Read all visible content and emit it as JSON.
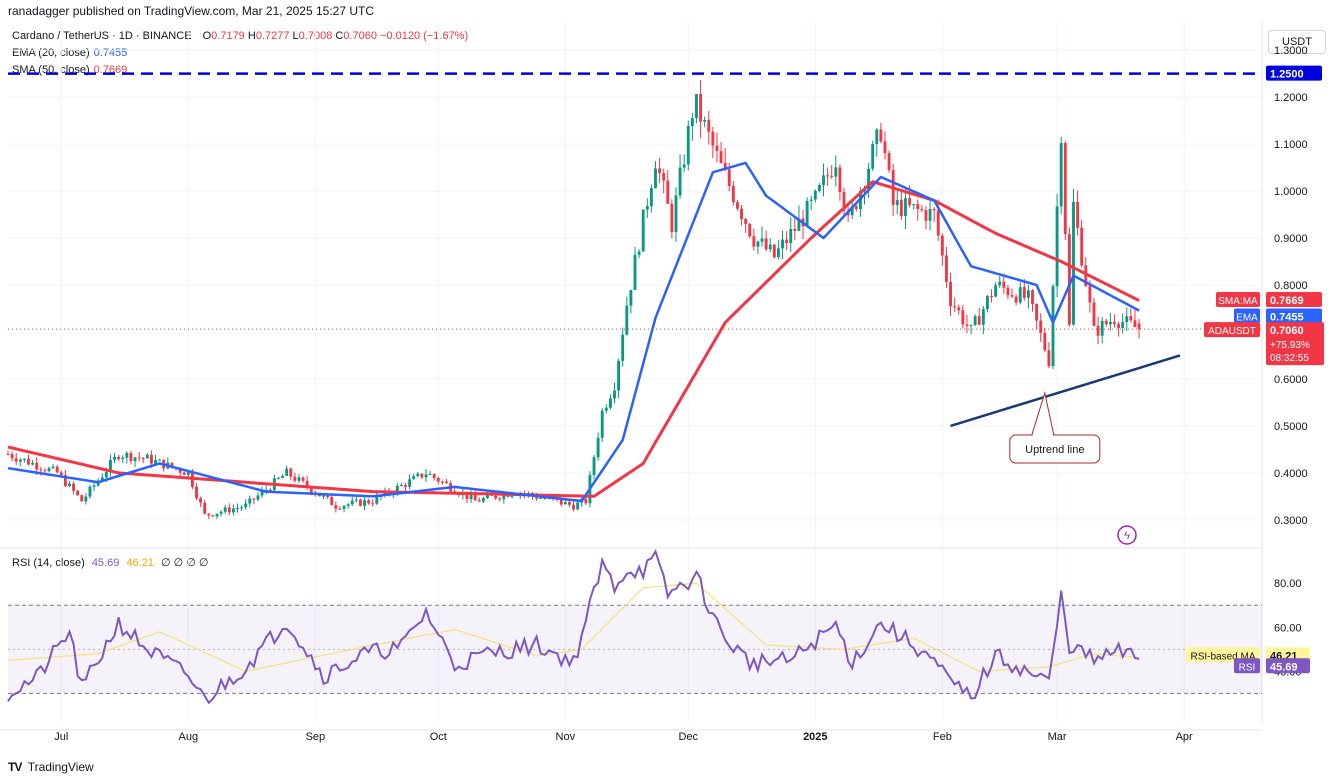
{
  "header": {
    "publisher": "ranadagger published on TradingView.com, Mar 21, 2025 15:27 UTC",
    "symbol": "Cardano / TetherUS · 1D · BINANCE",
    "ohlc": {
      "o_label": "O",
      "o": "0.7179",
      "h_label": "H",
      "h": "0.7277",
      "l_label": "L",
      "l": "0.7008",
      "c_label": "C",
      "c": "0.7060",
      "change": "−0.0120 (−1.67%)"
    },
    "ema_label": "EMA (20, close)",
    "ema_value": "0.7455",
    "sma_label": "SMA (50, close)",
    "sma_value": "0.7669",
    "rsi_label": "RSI (14, close)",
    "rsi_value": "45.69",
    "rsi_ma_value": "46.21",
    "rsi_extra": "∅ ∅ ∅ ∅"
  },
  "currency_button": "USDT",
  "footer": {
    "brand": "TradingView"
  },
  "colors": {
    "up": "#089981",
    "down": "#f23645",
    "ema": "#2962ff",
    "sma": "#f23645",
    "rsi": "#7e57c2",
    "rsi_ma": "#f7e07a",
    "level": "#0000dd",
    "trend": "#1a3a75"
  },
  "chart_data": [
    {
      "type": "candlestick",
      "title": "Cardano / TetherUS · 1D · BINANCE",
      "x_tick_labels": [
        "Jul",
        "Aug",
        "Sep",
        "Oct",
        "Nov",
        "Dec",
        "2025",
        "Feb",
        "Mar",
        "Apr"
      ],
      "y_tick_labels": [
        "1.3000",
        "1.2000",
        "1.1000",
        "1.0000",
        "0.9000",
        "0.8000",
        "0.6000",
        "0.5000",
        "0.4000",
        "0.3000"
      ],
      "ylim": [
        0.24,
        1.36
      ],
      "price_anchors": [
        [
          "Jun 18",
          0.44
        ],
        [
          "Jun 30",
          0.4
        ],
        [
          "Jul 6",
          0.34
        ],
        [
          "Jul 15",
          0.44
        ],
        [
          "Jul 22",
          0.43
        ],
        [
          "Aug 1",
          0.4
        ],
        [
          "Aug 5",
          0.31
        ],
        [
          "Aug 15",
          0.33
        ],
        [
          "Aug 25",
          0.4
        ],
        [
          "Sep 6",
          0.33
        ],
        [
          "Sep 15",
          0.34
        ],
        [
          "Sep 28",
          0.4
        ],
        [
          "Oct 10",
          0.34
        ],
        [
          "Oct 20",
          0.36
        ],
        [
          "Nov 3",
          0.33
        ],
        [
          "Nov 6",
          0.34
        ],
        [
          "Nov 10",
          0.53
        ],
        [
          "Nov 13",
          0.59
        ],
        [
          "Nov 16",
          0.76
        ],
        [
          "Nov 23",
          1.07
        ],
        [
          "Nov 27",
          0.93
        ],
        [
          "Dec 2",
          1.17
        ],
        [
          "Dec 3",
          1.18
        ],
        [
          "Dec 9",
          1.05
        ],
        [
          "Dec 17",
          0.9
        ],
        [
          "Dec 22",
          0.86
        ],
        [
          "Jan 1",
          0.98
        ],
        [
          "Jan 6",
          1.07
        ],
        [
          "Jan 9",
          0.93
        ],
        [
          "Jan 17",
          1.13
        ],
        [
          "Jan 20",
          0.97
        ],
        [
          "Jan 30",
          0.95
        ],
        [
          "Feb 3",
          0.77
        ],
        [
          "Feb 8",
          0.7
        ],
        [
          "Feb 14",
          0.8
        ],
        [
          "Feb 22",
          0.77
        ],
        [
          "Feb 27",
          0.64
        ],
        [
          "Mar 2",
          1.13
        ],
        [
          "Mar 4",
          0.71
        ],
        [
          "Mar 5",
          0.97
        ],
        [
          "Mar 10",
          0.7
        ],
        [
          "Mar 15",
          0.73
        ],
        [
          "Mar 21",
          0.706
        ]
      ],
      "ema20_anchors": [
        [
          "Jun 18",
          0.41
        ],
        [
          "Jul 10",
          0.38
        ],
        [
          "Jul 25",
          0.42
        ],
        [
          "Aug 20",
          0.36
        ],
        [
          "Sep 15",
          0.35
        ],
        [
          "Oct 5",
          0.37
        ],
        [
          "Nov 5",
          0.34
        ],
        [
          "Nov 15",
          0.47
        ],
        [
          "Nov 23",
          0.73
        ],
        [
          "Dec 7",
          1.04
        ],
        [
          "Dec 15",
          1.06
        ],
        [
          "Dec 20",
          0.99
        ],
        [
          "Jan 3",
          0.9
        ],
        [
          "Jan 17",
          1.03
        ],
        [
          "Jan 30",
          0.98
        ],
        [
          "Feb 8",
          0.84
        ],
        [
          "Feb 24",
          0.8
        ],
        [
          "Feb 28",
          0.72
        ],
        [
          "Mar 5",
          0.82
        ],
        [
          "Mar 21",
          0.7455
        ]
      ],
      "sma50_anchors": [
        [
          "Jun 18",
          0.455
        ],
        [
          "Jul 15",
          0.4
        ],
        [
          "Aug 15",
          0.38
        ],
        [
          "Sep 15",
          0.36
        ],
        [
          "Oct 15",
          0.355
        ],
        [
          "Nov 8",
          0.35
        ],
        [
          "Nov 20",
          0.42
        ],
        [
          "Dec 10",
          0.72
        ],
        [
          "Dec 31",
          0.9
        ],
        [
          "Jan 15",
          1.02
        ],
        [
          "Jan 30",
          0.98
        ],
        [
          "Feb 14",
          0.91
        ],
        [
          "Mar 2",
          0.85
        ],
        [
          "Mar 21",
          0.7669
        ]
      ],
      "horizontal_level": 1.25,
      "trendline": {
        "from": [
          "Feb 3",
          0.5
        ],
        "to": [
          "Mar 31",
          0.65
        ]
      },
      "annotation": {
        "text": "Uptrend line",
        "points_to": [
          "Feb 26",
          0.57
        ]
      },
      "tags": {
        "sma": {
          "name": "SMA:MA",
          "value": "0.7669"
        },
        "ema": {
          "name": "EMA",
          "value": "0.7455"
        },
        "price": {
          "name": "ADAUSDT",
          "value": "0.7060",
          "change": "+75.93%",
          "countdown": "08:32:55"
        },
        "level": {
          "value": "1.2500"
        }
      }
    },
    {
      "type": "line",
      "title": "RSI (14, close)",
      "y_tick_labels": [
        "80.00",
        "60.00",
        "40.00"
      ],
      "ylim": [
        17,
        96
      ],
      "bands": [
        30,
        70
      ],
      "rsi_anchors": [
        [
          "Jun 18",
          30
        ],
        [
          "Jun 25",
          37
        ],
        [
          "Jul 3",
          58
        ],
        [
          "Jul 6",
          32
        ],
        [
          "Jul 15",
          62
        ],
        [
          "Jul 22",
          50
        ],
        [
          "Aug 1",
          38
        ],
        [
          "Aug 5",
          27
        ],
        [
          "Aug 15",
          42
        ],
        [
          "Aug 25",
          63
        ],
        [
          "Sep 3",
          38
        ],
        [
          "Sep 13",
          48
        ],
        [
          "Sep 22",
          51
        ],
        [
          "Sep 28",
          67
        ],
        [
          "Oct 5",
          43
        ],
        [
          "Oct 13",
          48
        ],
        [
          "Oct 25",
          52
        ],
        [
          "Nov 3",
          44
        ],
        [
          "Nov 10",
          88
        ],
        [
          "Nov 13",
          79
        ],
        [
          "Nov 16",
          86
        ],
        [
          "Nov 20",
          86
        ],
        [
          "Nov 23",
          91
        ],
        [
          "Nov 26",
          75
        ],
        [
          "Dec 3",
          83
        ],
        [
          "Dec 9",
          57
        ],
        [
          "Dec 16",
          44
        ],
        [
          "Dec 26",
          45
        ],
        [
          "Jan 6",
          61
        ],
        [
          "Jan 10",
          44
        ],
        [
          "Jan 17",
          62
        ],
        [
          "Jan 28",
          48
        ],
        [
          "Feb 3",
          35
        ],
        [
          "Feb 8",
          28
        ],
        [
          "Feb 14",
          47
        ],
        [
          "Feb 27",
          35
        ],
        [
          "Mar 2",
          74
        ],
        [
          "Mar 4",
          52
        ],
        [
          "Mar 10",
          45
        ],
        [
          "Mar 16",
          49
        ],
        [
          "Mar 21",
          45.69
        ]
      ],
      "rsi_ma_anchors": [
        [
          "Jun 18",
          45
        ],
        [
          "Jul 10",
          48
        ],
        [
          "Jul 25",
          58
        ],
        [
          "Aug 15",
          40
        ],
        [
          "Sep 10",
          50
        ],
        [
          "Oct 5",
          59
        ],
        [
          "Oct 25",
          47
        ],
        [
          "Nov 5",
          50
        ],
        [
          "Nov 20",
          78
        ],
        [
          "Dec 3",
          80
        ],
        [
          "Dec 20",
          52
        ],
        [
          "Jan 8",
          50
        ],
        [
          "Jan 25",
          55
        ],
        [
          "Feb 10",
          40
        ],
        [
          "Feb 27",
          42
        ],
        [
          "Mar 10",
          48
        ],
        [
          "Mar 21",
          46.21
        ]
      ],
      "tags": {
        "ma": {
          "name": "RSI-based MA",
          "value": "46.21"
        },
        "rsi": {
          "name": "RSI",
          "value": "45.69"
        }
      }
    }
  ]
}
